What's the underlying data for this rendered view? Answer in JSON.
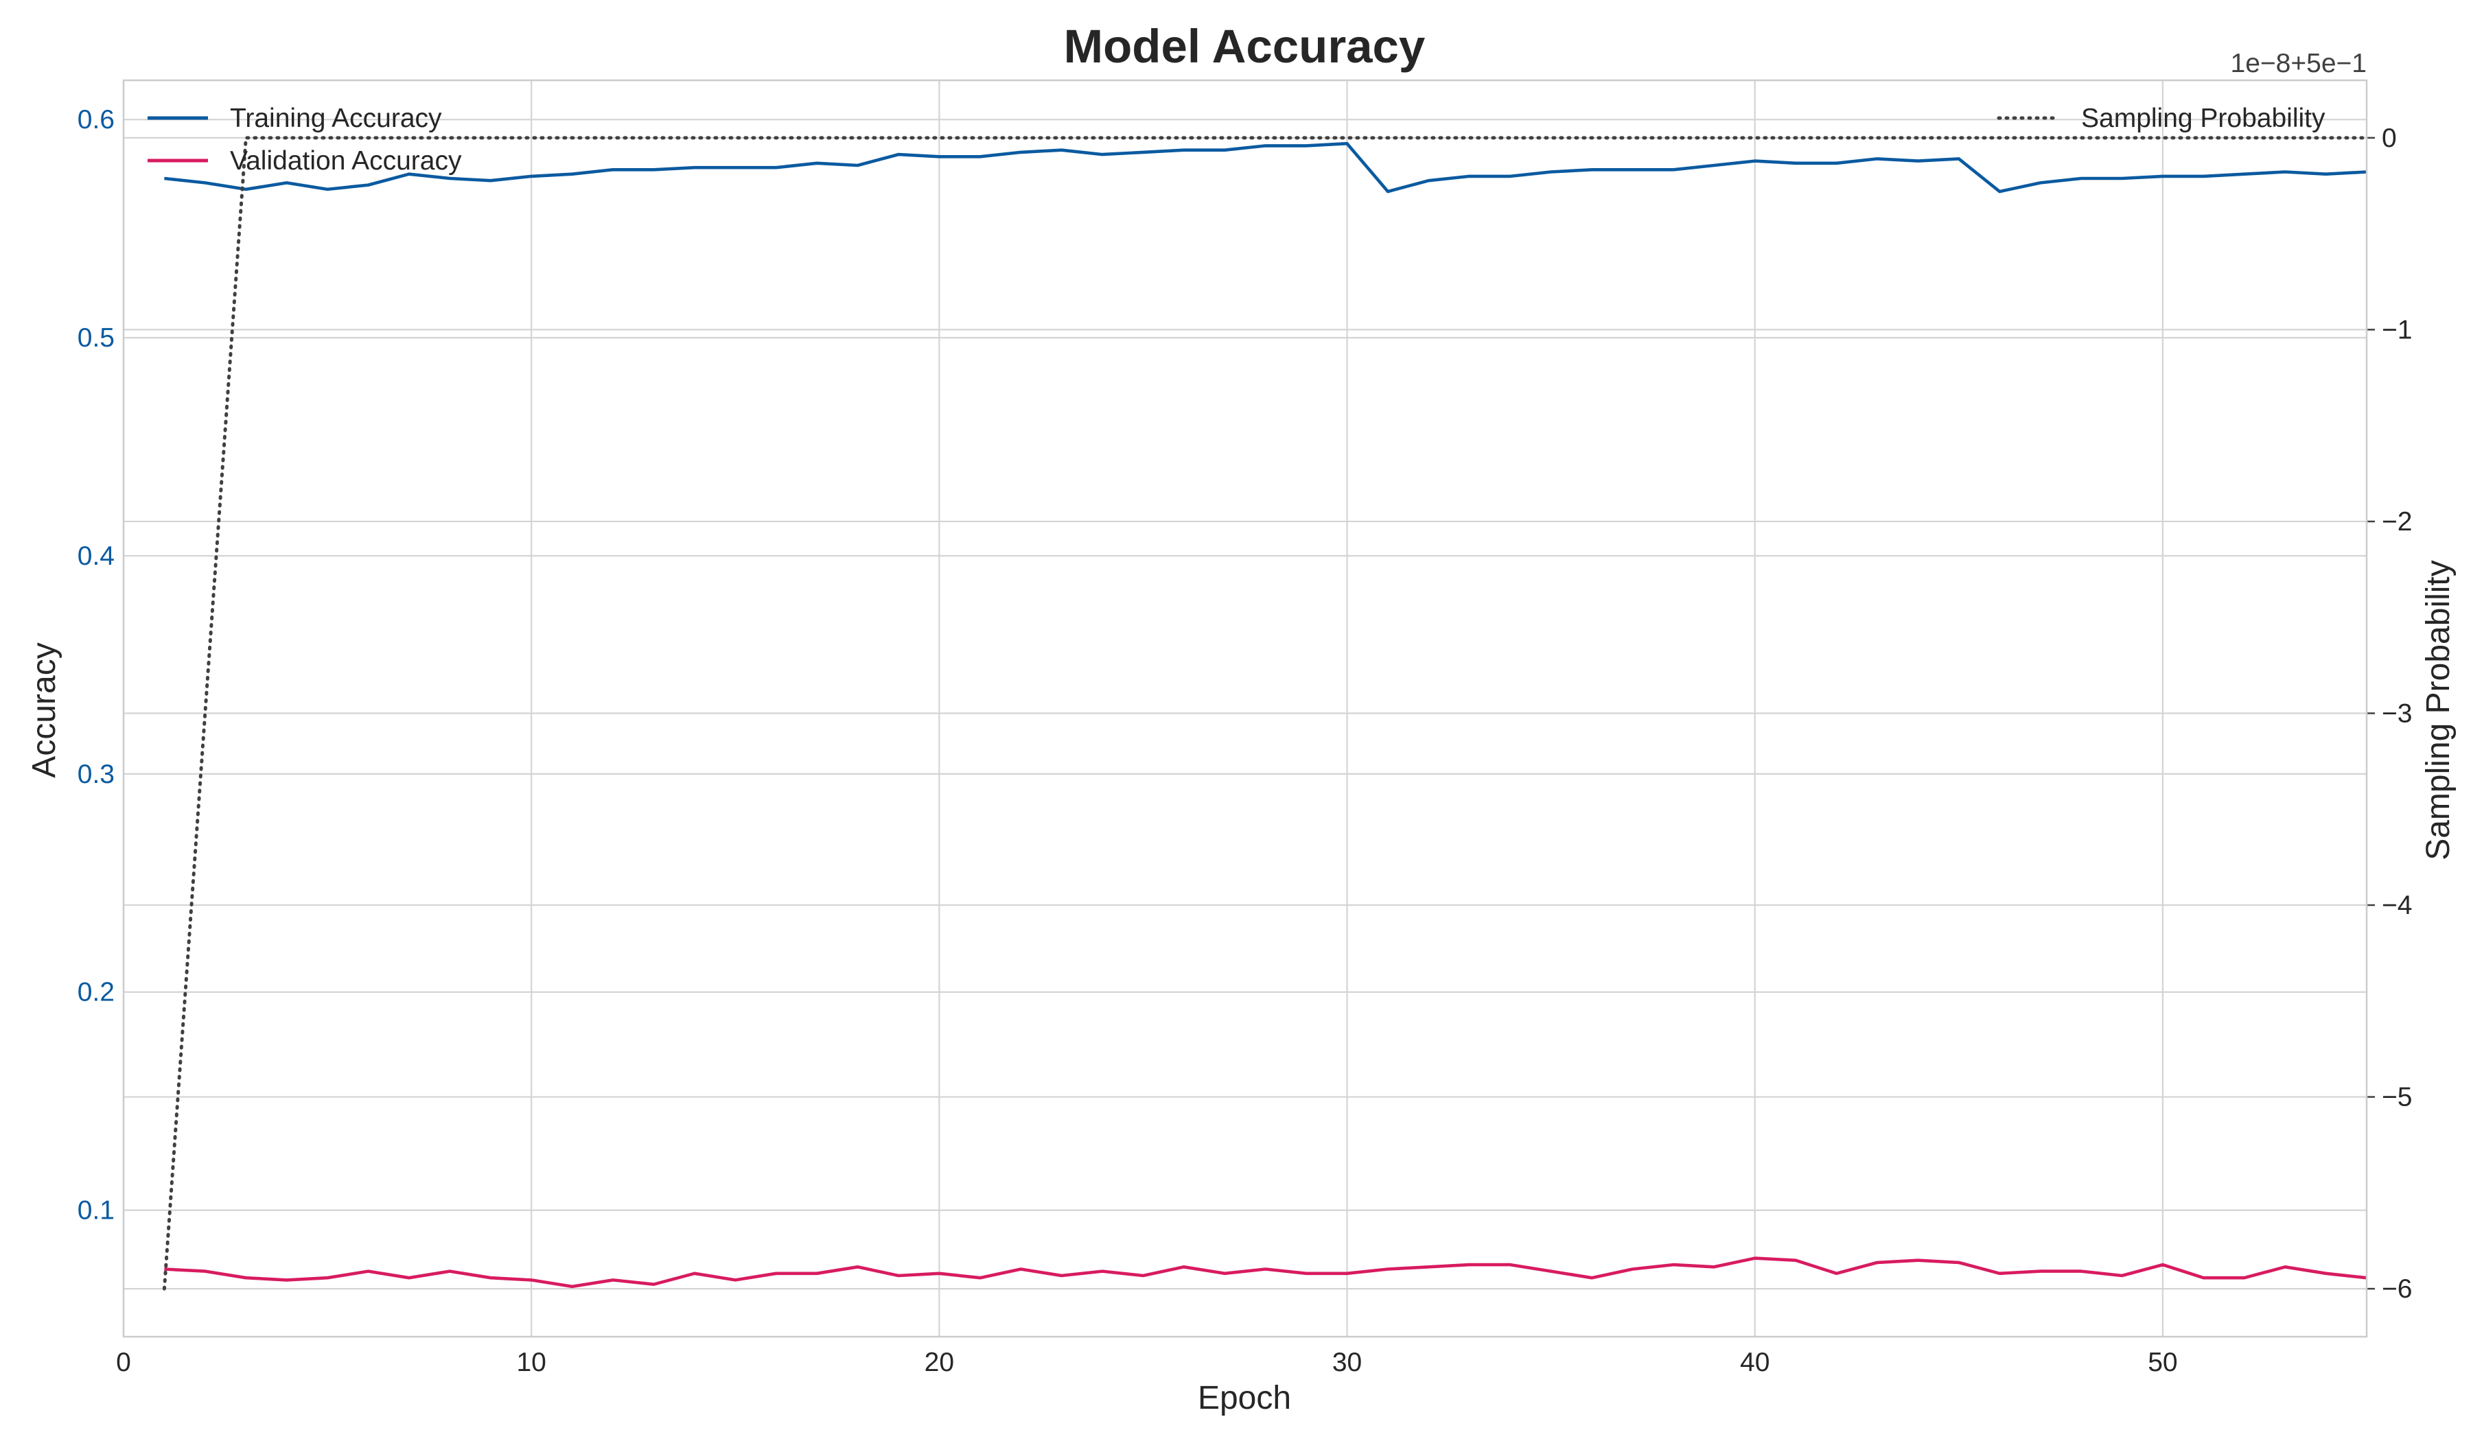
{
  "chart_data": {
    "type": "line",
    "title": "Model Accuracy",
    "xlabel": "Epoch",
    "ylabel": "Accuracy",
    "y2label": "Sampling Probability",
    "xlim": [
      0,
      55
    ],
    "ylim": [
      0.042,
      0.618
    ],
    "y2lim": [
      -6.25,
      0.3
    ],
    "y2_offset_text": "1e−8+5e−1",
    "x_ticks": [
      0,
      10,
      20,
      30,
      40,
      50
    ],
    "y_ticks": [
      0.1,
      0.2,
      0.3,
      0.4,
      0.5,
      0.6
    ],
    "y2_ticks": [
      0,
      -1,
      -2,
      -3,
      -4,
      -5,
      -6
    ],
    "grid": true,
    "legend_left_placement": "upper-left",
    "legend_right_placement": "upper-right",
    "x": [
      1,
      2,
      3,
      4,
      5,
      6,
      7,
      8,
      9,
      10,
      11,
      12,
      13,
      14,
      15,
      16,
      17,
      18,
      19,
      20,
      21,
      22,
      23,
      24,
      25,
      26,
      27,
      28,
      29,
      30,
      31,
      32,
      33,
      34,
      35,
      36,
      37,
      38,
      39,
      40,
      41,
      42,
      43,
      44,
      45,
      46,
      47,
      48,
      49,
      50,
      51,
      52,
      53,
      54,
      55
    ],
    "series": [
      {
        "name": "Training Accuracy",
        "axis": "left",
        "color": "#0a5aa0",
        "style": "solid",
        "values": [
          0.573,
          0.571,
          0.568,
          0.571,
          0.568,
          0.57,
          0.575,
          0.573,
          0.572,
          0.574,
          0.575,
          0.577,
          0.577,
          0.578,
          0.578,
          0.578,
          0.58,
          0.579,
          0.584,
          0.583,
          0.583,
          0.585,
          0.586,
          0.584,
          0.585,
          0.586,
          0.586,
          0.588,
          0.588,
          0.589,
          0.567,
          0.572,
          0.574,
          0.574,
          0.576,
          0.577,
          0.577,
          0.577,
          0.579,
          0.581,
          0.58,
          0.58,
          0.582,
          0.581,
          0.582,
          0.567,
          0.571,
          0.573,
          0.573,
          0.574,
          0.574,
          0.575,
          0.576,
          0.575,
          0.576
        ]
      },
      {
        "name": "Validation Accuracy",
        "axis": "left",
        "color": "#d81b60",
        "style": "solid",
        "values": [
          0.073,
          0.072,
          0.069,
          0.068,
          0.069,
          0.072,
          0.069,
          0.072,
          0.069,
          0.068,
          0.065,
          0.068,
          0.066,
          0.071,
          0.068,
          0.071,
          0.071,
          0.074,
          0.07,
          0.071,
          0.069,
          0.073,
          0.07,
          0.072,
          0.07,
          0.074,
          0.071,
          0.073,
          0.071,
          0.071,
          0.073,
          0.074,
          0.075,
          0.075,
          0.072,
          0.069,
          0.073,
          0.075,
          0.074,
          0.078,
          0.077,
          0.071,
          0.076,
          0.077,
          0.076,
          0.071,
          0.072,
          0.072,
          0.07,
          0.075,
          0.069,
          0.069,
          0.074,
          0.071,
          0.069
        ]
      },
      {
        "name": "Sampling Probability",
        "axis": "right",
        "color": "#404040",
        "style": "dotted",
        "values": [
          -6,
          -3,
          0,
          0,
          0,
          0,
          0,
          0,
          0,
          0,
          0,
          0,
          0,
          0,
          0,
          0,
          0,
          0,
          0,
          0,
          0,
          0,
          0,
          0,
          0,
          0,
          0,
          0,
          0,
          0,
          0,
          0,
          0,
          0,
          0,
          0,
          0,
          0,
          0,
          0,
          0,
          0,
          0,
          0,
          0,
          0,
          0,
          0,
          0,
          0,
          0,
          0,
          0,
          0,
          0
        ]
      }
    ]
  }
}
